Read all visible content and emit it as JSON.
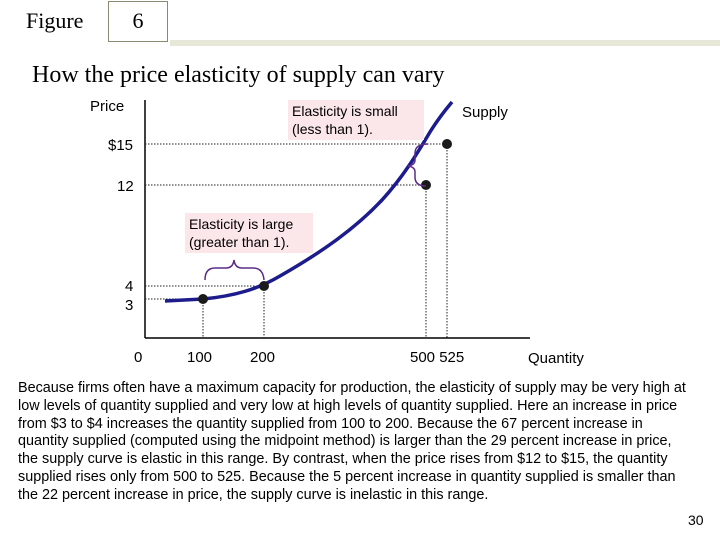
{
  "header": {
    "figure_label": "Figure",
    "figure_number": "6"
  },
  "slide_title": "How the price elasticity of supply can vary",
  "chart_data": {
    "type": "line",
    "xlabel": "Quantity",
    "ylabel": "Price",
    "curve_label": "Supply",
    "x_ticks": [
      "0",
      "100",
      "200",
      "500 525"
    ],
    "y_ticks": [
      "$15",
      "12",
      "4",
      "3"
    ],
    "points": [
      {
        "x": 100,
        "y": 3
      },
      {
        "x": 200,
        "y": 4
      },
      {
        "x": 500,
        "y": 12
      },
      {
        "x": 525,
        "y": 15
      }
    ],
    "annotations": [
      {
        "text_line1": "Elasticity is small",
        "text_line2": "(less than 1)."
      },
      {
        "text_line1": "Elasticity is large",
        "text_line2": "(greater than 1)."
      }
    ],
    "colors": {
      "curve": "#1c1c8c",
      "point": "#1a1a1a",
      "annotation_bg": "#fbe6ea",
      "brace": "#5b2b86"
    }
  },
  "caption": "Because firms often have a maximum capacity for production, the elasticity of supply may be very high at low levels of quantity supplied and very low at high levels of quantity supplied. Here an increase in price from $3 to $4 increases the quantity supplied from 100 to 200. Because the 67 percent increase in quantity supplied (computed using the midpoint method) is larger than the 29 percent increase in price, the supply curve is elastic in this range. By contrast, when the price rises from $12 to $15, the quantity supplied rises only from 500 to 525. Because the 5 percent increase in quantity supplied is smaller than the 22 percent increase in price, the supply curve is inelastic in this range.",
  "page_number": "30"
}
